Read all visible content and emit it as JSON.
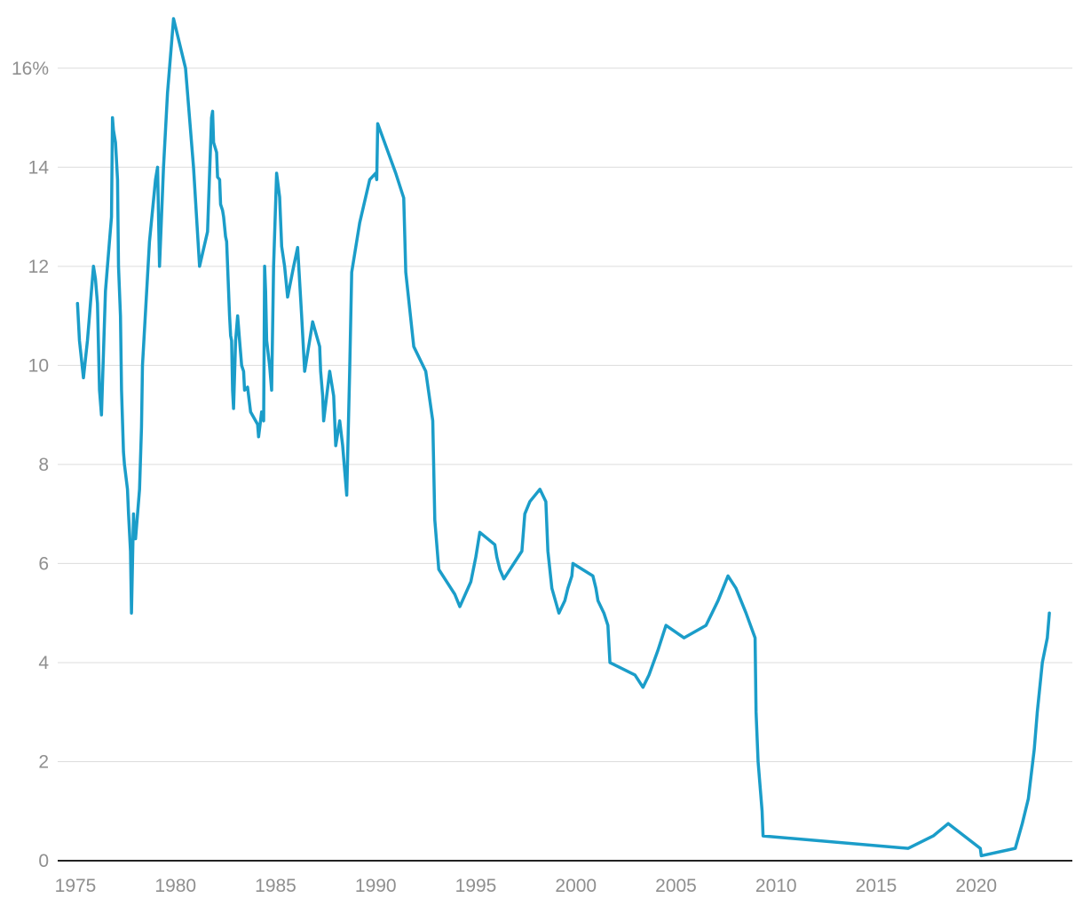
{
  "chart_data": {
    "type": "line",
    "title": "",
    "xlabel": "",
    "ylabel": "",
    "xlim": [
      1975,
      2023.7
    ],
    "ylim": [
      0,
      17
    ],
    "x_ticks": [
      1975,
      1980,
      1985,
      1990,
      1995,
      2000,
      2005,
      2010,
      2015,
      2020
    ],
    "x_tick_labels": [
      "1975",
      "1980",
      "1985",
      "1990",
      "1995",
      "2000",
      "2005",
      "2010",
      "2015",
      "2020"
    ],
    "y_ticks": [
      0,
      2,
      4,
      6,
      8,
      10,
      12,
      14,
      16
    ],
    "y_tick_labels": [
      "0",
      "2",
      "4",
      "6",
      "8",
      "10",
      "12",
      "14",
      "16%"
    ],
    "grid": "horizontal",
    "legend": "none",
    "line_color": "#1b9dc9",
    "series": [
      {
        "points": [
          [
            1975.1,
            11.25
          ],
          [
            1975.2,
            10.5
          ],
          [
            1975.4,
            9.75
          ],
          [
            1975.6,
            10.5
          ],
          [
            1975.7,
            11.0
          ],
          [
            1975.8,
            11.5
          ],
          [
            1975.9,
            12.0
          ],
          [
            1976.0,
            11.75
          ],
          [
            1976.1,
            11.25
          ],
          [
            1976.2,
            9.5
          ],
          [
            1976.3,
            9.0
          ],
          [
            1976.5,
            11.5
          ],
          [
            1976.7,
            12.5
          ],
          [
            1976.8,
            13.0
          ],
          [
            1976.85,
            15.0
          ],
          [
            1976.9,
            14.75
          ],
          [
            1977.0,
            14.5
          ],
          [
            1977.1,
            13.75
          ],
          [
            1977.15,
            12.0
          ],
          [
            1977.25,
            11.0
          ],
          [
            1977.3,
            9.5
          ],
          [
            1977.4,
            8.25
          ],
          [
            1977.45,
            8.0
          ],
          [
            1977.6,
            7.5
          ],
          [
            1977.65,
            7.0
          ],
          [
            1977.75,
            6.25
          ],
          [
            1977.8,
            5.0
          ],
          [
            1977.9,
            7.0
          ],
          [
            1977.95,
            6.5
          ],
          [
            1978.0,
            6.5
          ],
          [
            1978.2,
            7.5
          ],
          [
            1978.3,
            8.75
          ],
          [
            1978.35,
            10.0
          ],
          [
            1978.7,
            12.5
          ],
          [
            1979.0,
            13.75
          ],
          [
            1979.1,
            14.0
          ],
          [
            1979.2,
            12.0
          ],
          [
            1979.4,
            14.0
          ],
          [
            1979.6,
            15.5
          ],
          [
            1979.9,
            17.0
          ],
          [
            1980.5,
            16.0
          ],
          [
            1980.9,
            14.0
          ],
          [
            1981.2,
            12.0
          ],
          [
            1981.6,
            12.7
          ],
          [
            1981.8,
            15.0
          ],
          [
            1981.85,
            15.13
          ],
          [
            1981.9,
            14.5
          ],
          [
            1982.05,
            14.3
          ],
          [
            1982.1,
            13.8
          ],
          [
            1982.2,
            13.75
          ],
          [
            1982.25,
            13.25
          ],
          [
            1982.35,
            13.13
          ],
          [
            1982.4,
            13.0
          ],
          [
            1982.5,
            12.6
          ],
          [
            1982.55,
            12.5
          ],
          [
            1982.6,
            12.0
          ],
          [
            1982.65,
            11.5
          ],
          [
            1982.7,
            11.0
          ],
          [
            1982.75,
            10.6
          ],
          [
            1982.8,
            10.5
          ],
          [
            1982.85,
            9.5
          ],
          [
            1982.9,
            9.13
          ],
          [
            1983.0,
            10.5
          ],
          [
            1983.1,
            11.0
          ],
          [
            1983.2,
            10.5
          ],
          [
            1983.3,
            10.0
          ],
          [
            1983.4,
            9.88
          ],
          [
            1983.45,
            9.5
          ],
          [
            1983.6,
            9.56
          ],
          [
            1983.75,
            9.06
          ],
          [
            1984.1,
            8.81
          ],
          [
            1984.15,
            8.56
          ],
          [
            1984.3,
            9.06
          ],
          [
            1984.4,
            8.88
          ],
          [
            1984.45,
            12.0
          ],
          [
            1984.5,
            11.5
          ],
          [
            1984.55,
            10.5
          ],
          [
            1984.7,
            10.0
          ],
          [
            1984.8,
            9.5
          ],
          [
            1984.9,
            12.0
          ],
          [
            1985.05,
            13.88
          ],
          [
            1985.2,
            13.4
          ],
          [
            1985.3,
            12.4
          ],
          [
            1985.45,
            12.0
          ],
          [
            1985.6,
            11.38
          ],
          [
            1985.9,
            12.0
          ],
          [
            1986.1,
            12.38
          ],
          [
            1986.3,
            11.0
          ],
          [
            1986.45,
            9.88
          ],
          [
            1986.7,
            10.5
          ],
          [
            1986.85,
            10.88
          ],
          [
            1987.2,
            10.38
          ],
          [
            1987.25,
            9.88
          ],
          [
            1987.35,
            9.38
          ],
          [
            1987.4,
            8.88
          ],
          [
            1987.55,
            9.38
          ],
          [
            1987.7,
            9.88
          ],
          [
            1987.9,
            9.38
          ],
          [
            1988.0,
            8.38
          ],
          [
            1988.2,
            8.88
          ],
          [
            1988.35,
            8.38
          ],
          [
            1988.45,
            7.88
          ],
          [
            1988.55,
            7.38
          ],
          [
            1988.7,
            9.88
          ],
          [
            1988.8,
            11.88
          ],
          [
            1989.2,
            12.88
          ],
          [
            1989.7,
            13.75
          ],
          [
            1990.0,
            13.88
          ],
          [
            1990.05,
            13.75
          ],
          [
            1990.1,
            14.88
          ],
          [
            1991.0,
            13.88
          ],
          [
            1991.4,
            13.38
          ],
          [
            1991.5,
            11.88
          ],
          [
            1991.9,
            10.38
          ],
          [
            1992.5,
            9.88
          ],
          [
            1992.85,
            8.88
          ],
          [
            1992.95,
            6.88
          ],
          [
            1993.15,
            5.88
          ],
          [
            1993.95,
            5.38
          ],
          [
            1994.2,
            5.13
          ],
          [
            1994.75,
            5.63
          ],
          [
            1995.0,
            6.13
          ],
          [
            1995.2,
            6.63
          ],
          [
            1995.95,
            6.38
          ],
          [
            1996.05,
            6.13
          ],
          [
            1996.2,
            5.88
          ],
          [
            1996.4,
            5.69
          ],
          [
            1997.3,
            6.25
          ],
          [
            1997.45,
            7.0
          ],
          [
            1997.7,
            7.25
          ],
          [
            1998.2,
            7.5
          ],
          [
            1998.5,
            7.25
          ],
          [
            1998.6,
            6.25
          ],
          [
            1998.8,
            5.5
          ],
          [
            1999.15,
            5.0
          ],
          [
            1999.45,
            5.25
          ],
          [
            1999.6,
            5.5
          ],
          [
            1999.8,
            5.75
          ],
          [
            1999.85,
            6.0
          ],
          [
            2000.85,
            5.75
          ],
          [
            2001.0,
            5.5
          ],
          [
            2001.1,
            5.25
          ],
          [
            2001.4,
            5.0
          ],
          [
            2001.6,
            4.75
          ],
          [
            2001.7,
            4.0
          ],
          [
            2002.95,
            3.75
          ],
          [
            2003.35,
            3.5
          ],
          [
            2003.65,
            3.75
          ],
          [
            2004.1,
            4.25
          ],
          [
            2004.3,
            4.5
          ],
          [
            2004.5,
            4.75
          ],
          [
            2005.4,
            4.5
          ],
          [
            2006.5,
            4.75
          ],
          [
            2006.8,
            5.0
          ],
          [
            2007.1,
            5.25
          ],
          [
            2007.35,
            5.5
          ],
          [
            2007.6,
            5.75
          ],
          [
            2008.0,
            5.5
          ],
          [
            2008.5,
            5.0
          ],
          [
            2008.95,
            4.5
          ],
          [
            2009.0,
            3.0
          ],
          [
            2009.1,
            2.0
          ],
          [
            2009.3,
            1.0
          ],
          [
            2009.35,
            0.5
          ],
          [
            2016.6,
            0.25
          ],
          [
            2017.85,
            0.5
          ],
          [
            2018.6,
            0.75
          ],
          [
            2020.2,
            0.25
          ],
          [
            2020.25,
            0.1
          ],
          [
            2021.95,
            0.25
          ],
          [
            2022.3,
            0.75
          ],
          [
            2022.6,
            1.25
          ],
          [
            2022.9,
            2.25
          ],
          [
            2023.05,
            3.0
          ],
          [
            2023.3,
            4.0
          ],
          [
            2023.55,
            4.5
          ],
          [
            2023.65,
            5.0
          ]
        ]
      }
    ]
  }
}
